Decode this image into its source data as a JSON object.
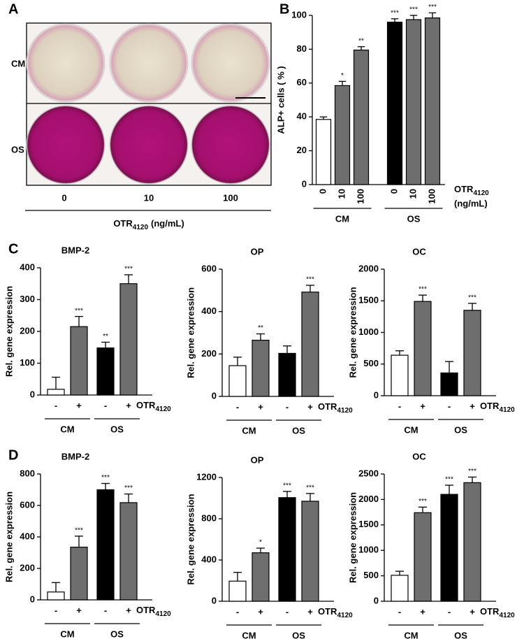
{
  "panel_a": {
    "panel": "A",
    "rows": [
      "CM",
      "OS"
    ],
    "columns": [
      "0",
      "10",
      "100"
    ],
    "xlabel": {
      "main": "OTR",
      "sub": "4120",
      "unit": "(ng/mL)"
    }
  },
  "chart_data": [
    {
      "type": "bar",
      "panel": "B",
      "ylabel": "ALP+ cells ( % )",
      "categories": [
        "0",
        "10",
        "100",
        "0",
        "10",
        "100"
      ],
      "groups": [
        "CM",
        "OS"
      ],
      "values": [
        38.5,
        58.5,
        79.5,
        96,
        97.5,
        98.5
      ],
      "errors": [
        1.5,
        2.5,
        2,
        2,
        2.5,
        3
      ],
      "annotations": [
        null,
        "*",
        "**",
        "***",
        "***",
        "***"
      ],
      "colors": [
        "#ffffff",
        "#6e6e6e",
        "#6e6e6e",
        "#000000",
        "#6e6e6e",
        "#6e6e6e"
      ],
      "ylim": [
        0,
        100
      ],
      "yticks": [
        0,
        20,
        40,
        60,
        80,
        100
      ],
      "treatment": {
        "main": "OTR",
        "sub": "4120"
      },
      "treatment_unit": "(ng/mL)"
    },
    {
      "type": "bar",
      "panel": "C",
      "title": "BMP-2",
      "ylabel": "Rel. gene expression",
      "categories": [
        "-",
        "+",
        "-",
        "+"
      ],
      "groups": [
        "CM",
        "OS"
      ],
      "values": [
        18,
        215,
        148,
        350
      ],
      "errors": [
        38,
        32,
        18,
        28
      ],
      "annotations": [
        null,
        "***",
        "**",
        "***"
      ],
      "colors": [
        "#ffffff",
        "#6e6e6e",
        "#000000",
        "#6e6e6e"
      ],
      "ylim": [
        0,
        400
      ],
      "yticks": [
        0,
        100,
        200,
        300,
        400
      ],
      "treatment": {
        "main": "OTR",
        "sub": "4120"
      }
    },
    {
      "type": "bar",
      "title": "OP",
      "ylabel": "Rel. gene expression",
      "categories": [
        "-",
        "+",
        "-",
        "+"
      ],
      "groups": [
        "CM",
        "OS"
      ],
      "values": [
        145,
        265,
        203,
        492
      ],
      "errors": [
        40,
        30,
        35,
        32
      ],
      "annotations": [
        null,
        "**",
        null,
        "***"
      ],
      "colors": [
        "#ffffff",
        "#6e6e6e",
        "#000000",
        "#6e6e6e"
      ],
      "ylim": [
        0,
        600
      ],
      "yticks": [
        0,
        200,
        400,
        600
      ],
      "treatment": {
        "main": "OTR",
        "sub": "4120"
      }
    },
    {
      "type": "bar",
      "title": "OC",
      "ylabel": "Rel. gene expression",
      "categories": [
        "-",
        "+",
        "-",
        "+"
      ],
      "groups": [
        "CM",
        "OS"
      ],
      "values": [
        640,
        1490,
        360,
        1350
      ],
      "errors": [
        70,
        100,
        180,
        110
      ],
      "annotations": [
        null,
        "***",
        null,
        "***"
      ],
      "colors": [
        "#ffffff",
        "#6e6e6e",
        "#000000",
        "#6e6e6e"
      ],
      "ylim": [
        0,
        2000
      ],
      "yticks": [
        0,
        500,
        1000,
        1500,
        2000
      ],
      "treatment": {
        "main": "OTR",
        "sub": "4120"
      }
    },
    {
      "type": "bar",
      "panel": "D",
      "title": "BMP-2",
      "ylabel": "Rel. gene expression",
      "categories": [
        "-",
        "+",
        "-",
        "+"
      ],
      "groups": [
        "CM",
        "OS"
      ],
      "values": [
        50,
        335,
        700,
        618
      ],
      "errors": [
        60,
        70,
        40,
        55
      ],
      "annotations": [
        null,
        "***",
        "***",
        "***"
      ],
      "colors": [
        "#ffffff",
        "#6e6e6e",
        "#000000",
        "#6e6e6e"
      ],
      "ylim": [
        0,
        800
      ],
      "yticks": [
        0,
        200,
        400,
        600,
        800
      ],
      "treatment": {
        "main": "OTR",
        "sub": "4120"
      }
    },
    {
      "type": "bar",
      "title": "OP",
      "ylabel": "Rel. gene expression",
      "categories": [
        "-",
        "+",
        "-",
        "+"
      ],
      "groups": [
        "CM",
        "OS"
      ],
      "values": [
        195,
        470,
        1005,
        970
      ],
      "errors": [
        85,
        45,
        60,
        75
      ],
      "annotations": [
        null,
        "*",
        "***",
        "***"
      ],
      "colors": [
        "#ffffff",
        "#6e6e6e",
        "#000000",
        "#6e6e6e"
      ],
      "ylim": [
        0,
        1200
      ],
      "yticks": [
        0,
        400,
        800,
        1200
      ],
      "treatment": {
        "main": "OTR",
        "sub": "4120"
      }
    },
    {
      "type": "bar",
      "title": "OC",
      "ylabel": "Rel. gene expression",
      "categories": [
        "-",
        "+",
        "-",
        "+"
      ],
      "groups": [
        "CM",
        "OS"
      ],
      "values": [
        510,
        1740,
        2100,
        2330
      ],
      "errors": [
        80,
        110,
        180,
        110
      ],
      "annotations": [
        null,
        "***",
        "***",
        "***"
      ],
      "colors": [
        "#ffffff",
        "#6e6e6e",
        "#000000",
        "#6e6e6e"
      ],
      "ylim": [
        0,
        2500
      ],
      "yticks": [
        0,
        500,
        1000,
        1500,
        2000,
        2500
      ],
      "treatment": {
        "main": "OTR",
        "sub": "4120"
      }
    }
  ]
}
